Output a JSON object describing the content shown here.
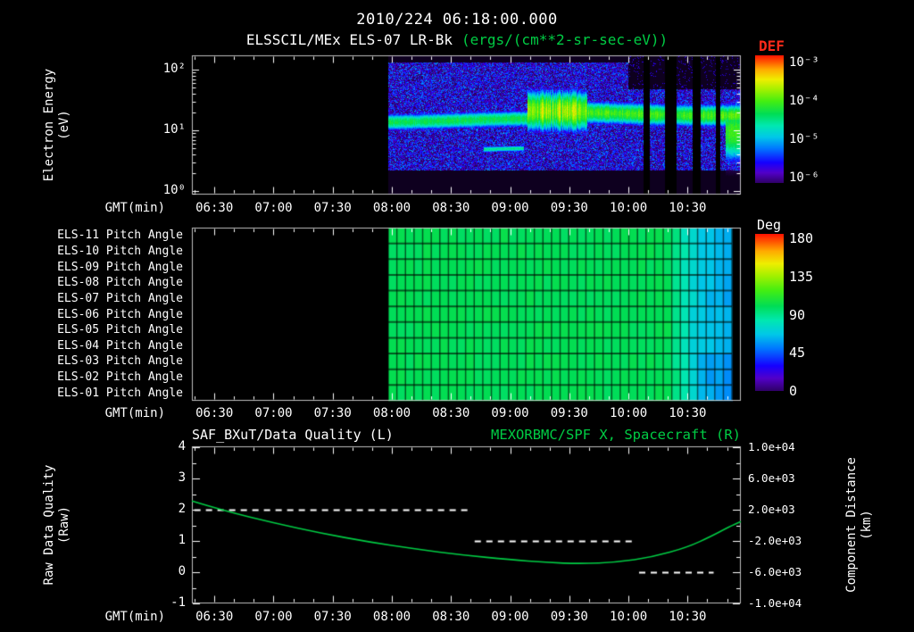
{
  "header": {
    "timestamp": "2010/224 06:18:00.000",
    "instrument": "ELSSCIL/MEx ELS-07 LR-Bk",
    "units": "(ergs/(cm**2-sr-sec-eV))"
  },
  "colors": {
    "background": "#000000",
    "text": "#ffffff",
    "green": "#00cc44",
    "def_red": "#ff2a1a",
    "colormap_stops": [
      [
        0,
        "#2e0066"
      ],
      [
        0.08,
        "#5200c8"
      ],
      [
        0.16,
        "#1500ff"
      ],
      [
        0.27,
        "#0077ff"
      ],
      [
        0.36,
        "#00c8e8"
      ],
      [
        0.45,
        "#00e8b0"
      ],
      [
        0.54,
        "#00dd55"
      ],
      [
        0.64,
        "#44ee11"
      ],
      [
        0.73,
        "#a0f000"
      ],
      [
        0.81,
        "#eeee00"
      ],
      [
        0.89,
        "#ffaa00"
      ],
      [
        0.95,
        "#ff5500"
      ],
      [
        1,
        "#ff1100"
      ]
    ]
  },
  "time_axis": {
    "label": "GMT(min)",
    "start_decimal_hour": 6.31,
    "end_decimal_hour": 10.95,
    "major_ticks_hours": [
      6.5,
      7,
      7.5,
      8,
      8.5,
      9,
      9.5,
      10,
      10.5
    ],
    "tick_labels": [
      "06:30",
      "07:00",
      "07:30",
      "08:00",
      "08:30",
      "09:00",
      "09:30",
      "10:00",
      "10:30"
    ],
    "minor_tick_minutes": 10
  },
  "chart_data": [
    {
      "type": "heatmap",
      "name": "electron-energy-spectrogram",
      "title": "ELSSCIL/MEx ELS-07 LR-Bk",
      "units": "ergs/(cm**2-sr-sec-eV)",
      "xlabel": "GMT(min)",
      "ylabel": [
        "Electron Energy",
        "(eV)"
      ],
      "y_scale": "log",
      "y_ticks": [
        "10²",
        "10¹",
        "10⁰"
      ],
      "ylim_eV": [
        1,
        170
      ],
      "colorbar": {
        "title": "DEF",
        "tick_labels": [
          "10⁻³",
          "10⁻⁴",
          "10⁻⁵",
          "10⁻⁶"
        ],
        "log10_range": [
          -6,
          -3
        ]
      },
      "data_start_hour": 7.97,
      "background_speckle": {
        "logE_range": [
          0.35,
          2.12
        ],
        "log10_intensity_range": [
          -6.25,
          -5.1
        ]
      },
      "bands": [
        {
          "name": "main-band",
          "t0": 7.97,
          "t1": 9.2,
          "center_logE": 1.17,
          "sigma_logE": 0.13,
          "peak_log10": -4.35,
          "streak": 0.6
        },
        {
          "name": "storm-brightening",
          "t0": 9.15,
          "t1": 9.65,
          "center_logE": 1.3,
          "sigma_logE": 0.3,
          "peak_log10": -3.85,
          "streak": 2
        },
        {
          "name": "post-storm-band",
          "t0": 9.6,
          "t1": 10.95,
          "center_logE": 1.28,
          "sigma_logE": 0.17,
          "peak_log10": -4.1,
          "streak": 1
        },
        {
          "name": "low-energy-line",
          "t0": 8.78,
          "t1": 9.12,
          "center_logE": 0.68,
          "sigma_logE": 0.05,
          "peak_log10": -4.55,
          "streak": 0.3
        },
        {
          "name": "right-edge-blob",
          "t0": 10.82,
          "t1": 10.95,
          "center_logE": 1.0,
          "sigma_logE": 0.45,
          "peak_log10": -4.15,
          "streak": 0.5
        }
      ],
      "dropout_hours": [
        [
          10.13,
          10.18
        ],
        [
          10.31,
          10.41
        ],
        [
          10.54,
          10.61
        ],
        [
          10.74,
          10.78
        ]
      ],
      "top_right_black": {
        "after_hour": 10.0,
        "above_logE": 1.68
      }
    },
    {
      "type": "heatmap",
      "name": "pitch-angle-panels",
      "rows": [
        "ELS-11 Pitch Angle",
        "ELS-10 Pitch Angle",
        "ELS-09 Pitch Angle",
        "ELS-08 Pitch Angle",
        "ELS-07 Pitch Angle",
        "ELS-06 Pitch Angle",
        "ELS-05 Pitch Angle",
        "ELS-04 Pitch Angle",
        "ELS-03 Pitch Angle",
        "ELS-02 Pitch Angle",
        "ELS-01 Pitch Angle"
      ],
      "xlabel": "GMT(min)",
      "value_unit": "deg",
      "colorbar": {
        "title": "Deg",
        "tick_labels": [
          "180",
          "135",
          "90",
          "45",
          "0"
        ],
        "range": [
          0,
          180
        ]
      },
      "data_start_hour": 7.97,
      "data_end_hour": 10.875,
      "value_profile": [
        {
          "until_hour": 10.33,
          "deg": 97
        },
        {
          "until_hour": 10.6,
          "deg": 65
        },
        {
          "until_hour": 10.875,
          "deg": 58
        }
      ]
    },
    {
      "type": "line",
      "name": "data-quality-and-spacecraft-distance",
      "left_title": "SAF_BXuT/Data Quality (L)",
      "right_title": "MEXORBMC/SPF X, Spacecraft (R)",
      "xlabel": "GMT(min)",
      "left_axis": {
        "label": [
          "Raw Data Quality",
          "(Raw)"
        ],
        "tick_labels": [
          "4",
          "3",
          "2",
          "1",
          "0",
          "-1"
        ],
        "range": [
          -1,
          4
        ]
      },
      "right_axis": {
        "label": [
          "Component Distance",
          "(km)"
        ],
        "tick_labels": [
          "1.0e+04",
          "6.0e+03",
          "2.0e+03",
          "-2.0e+03",
          "-6.0e+03",
          "-1.0e+04"
        ],
        "range": [
          -10000,
          10000
        ]
      },
      "series": [
        {
          "name": "SAF_BXuT/Data Quality",
          "axis": "left",
          "color": "#ffffff",
          "style": "dashed",
          "segments": [
            {
              "t0": 6.33,
              "t1": 8.64,
              "value": 2
            },
            {
              "t0": 8.7,
              "t1": 10.06,
              "value": 1
            },
            {
              "t0": 10.09,
              "t1": 10.72,
              "value": 0
            }
          ]
        },
        {
          "name": "MEXORBMC/SPF X Spacecraft",
          "axis": "right",
          "color": "#00cc44",
          "style": "solid",
          "points_hour_km": [
            [
              6.31,
              3120
            ],
            [
              6.6,
              1800
            ],
            [
              7,
              320
            ],
            [
              7.4,
              -1000
            ],
            [
              7.8,
              -2120
            ],
            [
              8.2,
              -3040
            ],
            [
              8.6,
              -3800
            ],
            [
              9,
              -4400
            ],
            [
              9.3,
              -4760
            ],
            [
              9.6,
              -4920
            ],
            [
              9.9,
              -4720
            ],
            [
              10.2,
              -4080
            ],
            [
              10.5,
              -2800
            ],
            [
              10.7,
              -1400
            ],
            [
              10.85,
              -200
            ],
            [
              10.95,
              480
            ]
          ]
        }
      ]
    }
  ]
}
